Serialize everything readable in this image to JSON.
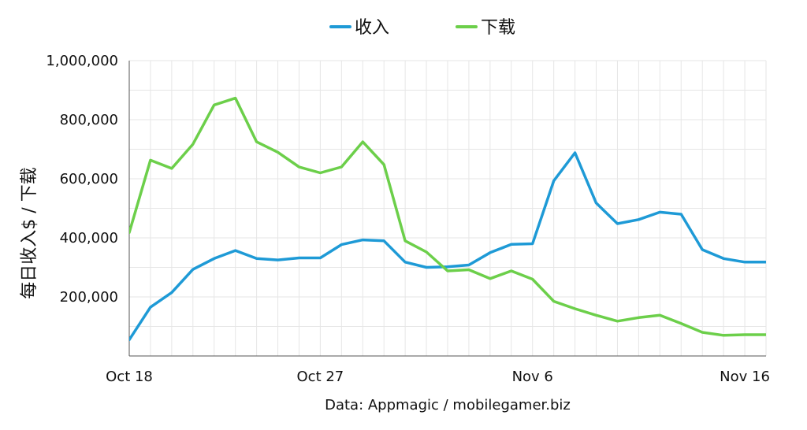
{
  "chart_data": {
    "type": "line",
    "x_tick_labels": [
      "Oct 18",
      "Oct 27",
      "Nov 6",
      "Nov 16"
    ],
    "x": [
      "Oct 18",
      "Oct 19",
      "Oct 20",
      "Oct 21",
      "Oct 22",
      "Oct 23",
      "Oct 24",
      "Oct 25",
      "Oct 26",
      "Oct 27",
      "Oct 28",
      "Oct 29",
      "Oct 30",
      "Oct 31",
      "Nov 1",
      "Nov 2",
      "Nov 3",
      "Nov 4",
      "Nov 5",
      "Nov 6",
      "Nov 7",
      "Nov 8",
      "Nov 9",
      "Nov 10",
      "Nov 11",
      "Nov 12",
      "Nov 13",
      "Nov 14",
      "Nov 15",
      "Nov 16",
      "Nov 17"
    ],
    "series": [
      {
        "name": "收入",
        "color": "#1e9ad6",
        "values": [
          55000,
          165000,
          215000,
          293000,
          330000,
          357000,
          330000,
          325000,
          332000,
          332000,
          377000,
          393000,
          390000,
          318000,
          300000,
          302000,
          308000,
          350000,
          378000,
          380000,
          593000,
          688000,
          518000,
          448000,
          462000,
          487000,
          480000,
          360000,
          330000,
          318000,
          318000
        ]
      },
      {
        "name": "下载",
        "color": "#6ccf4a",
        "values": [
          418000,
          663000,
          635000,
          717000,
          850000,
          873000,
          725000,
          690000,
          640000,
          620000,
          640000,
          725000,
          648000,
          390000,
          352000,
          288000,
          292000,
          262000,
          288000,
          260000,
          185000,
          160000,
          138000,
          118000,
          130000,
          138000,
          110000,
          80000,
          70000,
          72000,
          72000
        ]
      }
    ],
    "y_ticks": [
      "200,000",
      "400,000",
      "600,000",
      "800,000",
      "1,000,000"
    ],
    "ylabel": "每日收入$ / 下载",
    "ylim": [
      0,
      1000000
    ],
    "grid": true,
    "legend_position": "top-center",
    "source": "Data: Appmagic / mobilegamer.biz"
  }
}
